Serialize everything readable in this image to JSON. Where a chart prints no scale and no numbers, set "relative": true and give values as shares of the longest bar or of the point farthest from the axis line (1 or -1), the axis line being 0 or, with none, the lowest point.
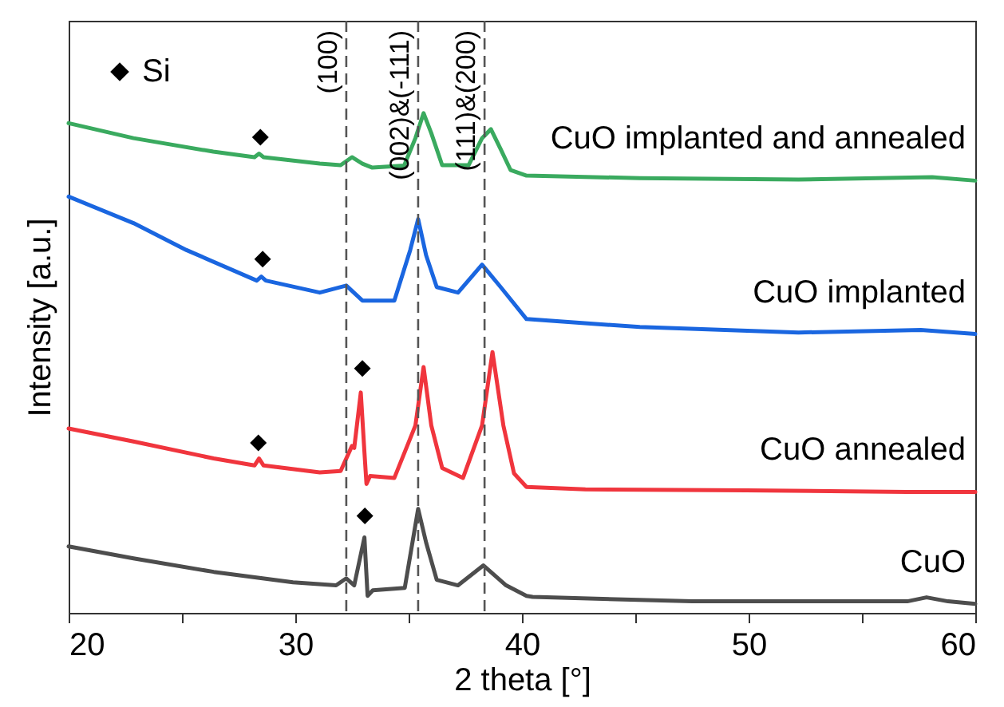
{
  "chart_data": {
    "type": "line",
    "xlabel": "2 theta [°]",
    "ylabel": "Intensity [a.u.]",
    "relative": true,
    "xlim": [
      20,
      60
    ],
    "xticks": [
      20,
      {
        "value": 25,
        "label": null
      },
      30,
      {
        "value": 35,
        "label": null
      },
      40,
      {
        "value": 45,
        "label": null
      },
      50,
      {
        "value": 55,
        "label": null
      },
      60
    ],
    "legend": "top left",
    "line_style": "solid",
    "series": [
      {
        "name": "CuO implanted and annealed",
        "color": "#3aaa5f",
        "x": [
          20,
          22.86,
          26.38,
          28.2,
          28.4,
          28.6,
          31.08,
          32.0,
          32.5,
          32.96,
          33.4,
          34.8,
          35.3,
          35.66,
          36.0,
          36.48,
          37.65,
          38.24,
          38.63,
          39.06,
          39.5,
          40.2,
          45.2,
          52.2,
          58.1,
          60
        ],
        "values": [
          0.98,
          0.95,
          0.923,
          0.912,
          0.919,
          0.912,
          0.899,
          0.896,
          0.912,
          0.899,
          0.891,
          0.895,
          0.95,
          1.0,
          0.96,
          0.896,
          0.896,
          0.95,
          0.968,
          0.928,
          0.886,
          0.875,
          0.87,
          0.867,
          0.872,
          0.865
        ]
      },
      {
        "name": "CuO implanted",
        "color": "#1a66e0",
        "x": [
          20,
          22.86,
          25.2,
          28.3,
          28.5,
          28.7,
          31.08,
          32.25,
          32.96,
          34.37,
          35.07,
          35.42,
          35.77,
          36.24,
          37.18,
          38.24,
          39.06,
          40.2,
          45.2,
          52.2,
          57.6,
          60
        ],
        "values": [
          0.833,
          0.78,
          0.726,
          0.665,
          0.673,
          0.665,
          0.641,
          0.655,
          0.625,
          0.625,
          0.726,
          0.788,
          0.716,
          0.652,
          0.641,
          0.697,
          0.652,
          0.588,
          0.572,
          0.561,
          0.566,
          0.558
        ]
      },
      {
        "name": "CuO annealed",
        "color": "#f0353d",
        "x": [
          20,
          22.86,
          26.4,
          28.2,
          28.4,
          28.6,
          31.08,
          32.0,
          32.5,
          32.6,
          32.89,
          33.05,
          33.14,
          33.3,
          34.37,
          35.3,
          35.66,
          36.0,
          36.48,
          37.4,
          38.24,
          38.7,
          39.18,
          39.65,
          40.2,
          42.8,
          49.9,
          57,
          60
        ],
        "values": [
          0.369,
          0.343,
          0.309,
          0.295,
          0.309,
          0.295,
          0.281,
          0.284,
          0.334,
          0.33,
          0.441,
          0.322,
          0.258,
          0.274,
          0.27,
          0.375,
          0.492,
          0.375,
          0.29,
          0.27,
          0.375,
          0.522,
          0.375,
          0.279,
          0.252,
          0.247,
          0.245,
          0.242,
          0.242
        ]
      },
      {
        "name": "CuO",
        "color": "#4d4d4d",
        "x": [
          20,
          22.86,
          26.4,
          29.9,
          31.8,
          32.25,
          32.6,
          33.05,
          33.19,
          33.42,
          34.83,
          35.42,
          35.77,
          36.24,
          37.18,
          38.3,
          39.3,
          40.2,
          40.47,
          47.5,
          57,
          57.85,
          58.8,
          60
        ],
        "values": [
          0.133,
          0.109,
          0.082,
          0.061,
          0.055,
          0.069,
          0.055,
          0.151,
          0.034,
          0.045,
          0.05,
          0.208,
          0.141,
          0.066,
          0.055,
          0.095,
          0.055,
          0.034,
          0.032,
          0.023,
          0.023,
          0.031,
          0.023,
          0.018
        ]
      },
      {
        "name": "Si",
        "type": "scatter",
        "marker": "diamond",
        "color": "#000000",
        "x": [
          28.46,
          28.56,
          28.37,
          32.96,
          33.07
        ],
        "values": [
          0.952,
          0.708,
          0.34,
          0.489,
          0.194
        ]
      }
    ],
    "ref_lines": [
      {
        "axis": "x",
        "value": 32.25,
        "color": "#555555",
        "line_style": "dashed"
      },
      {
        "axis": "x",
        "value": 35.42,
        "color": "#555555",
        "line_style": "dashed"
      },
      {
        "axis": "x",
        "value": 38.35,
        "color": "#555555",
        "line_style": "dashed"
      }
    ],
    "annotations": [
      {
        "text": "(100)",
        "x": 32.25
      },
      {
        "text": "(002)&(-111)",
        "x": 35.42
      },
      {
        "text": "(111)&(200)",
        "x": 38.35
      }
    ]
  }
}
